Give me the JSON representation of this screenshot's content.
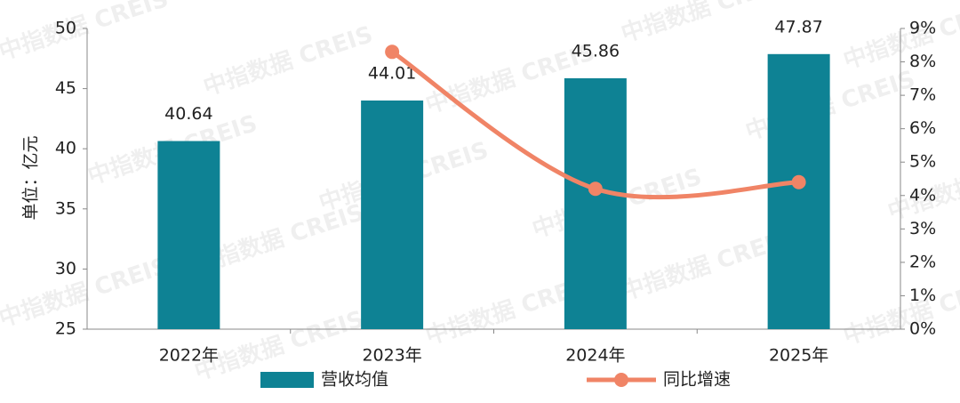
{
  "chart_data": {
    "type": "bar",
    "watermark": "中指数据 CREIS",
    "y_label": "单位：亿元",
    "categories": [
      "2022年",
      "2023年",
      "2024年",
      "2025年"
    ],
    "series": [
      {
        "name": "营收均值",
        "type": "bar",
        "color": "#0e8294",
        "values": [
          40.64,
          44.01,
          45.86,
          47.87
        ]
      },
      {
        "name": "同比增速",
        "type": "line",
        "axis": "y2",
        "color": "#f08466",
        "values": [
          null,
          8.3,
          4.2,
          4.4
        ]
      }
    ],
    "ylim": [
      25,
      50
    ],
    "yticks": [
      25,
      30,
      35,
      40,
      45,
      50
    ],
    "y2lim": [
      0,
      9
    ],
    "y2ticks": [
      {
        "value": 0,
        "label": "0%"
      },
      {
        "value": 1,
        "label": "1%"
      },
      {
        "value": 2,
        "label": "2%"
      },
      {
        "value": 3,
        "label": "3%"
      },
      {
        "value": 4,
        "label": "4%"
      },
      {
        "value": 5,
        "label": "5%"
      },
      {
        "value": 6,
        "label": "6%"
      },
      {
        "value": 7,
        "label": "7%"
      },
      {
        "value": 8,
        "label": "8%"
      },
      {
        "value": 9,
        "label": "9%"
      }
    ],
    "legend": "bottom"
  }
}
